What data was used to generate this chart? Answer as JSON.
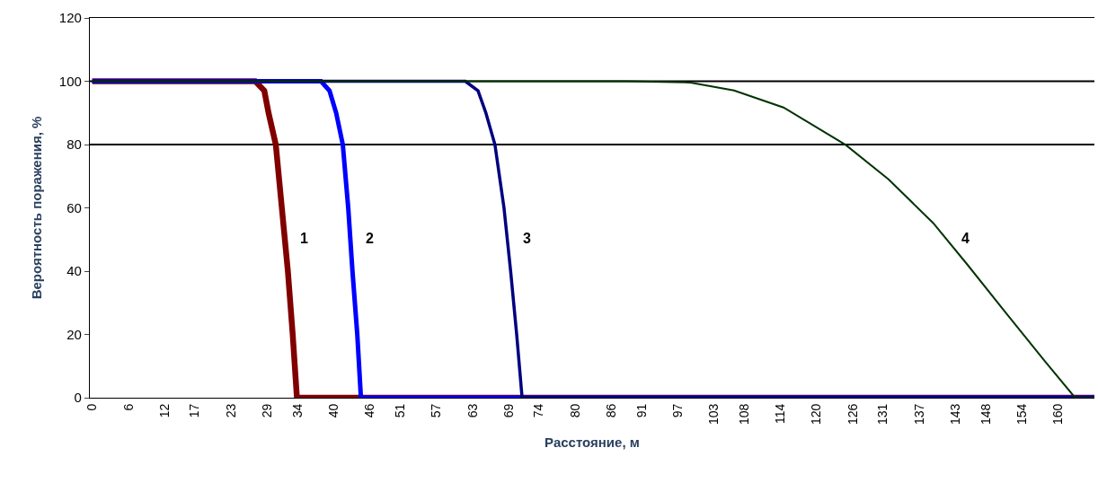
{
  "chart_data": {
    "type": "line",
    "xlabel": "Расстояние, м",
    "ylabel": "Вероятность поражения, %",
    "xlim": [
      -0.4,
      166
    ],
    "ylim": [
      0,
      120
    ],
    "xticks": [
      0,
      6,
      12,
      17,
      23,
      29,
      34,
      40,
      46,
      51,
      57,
      63,
      69,
      74,
      80,
      86,
      91,
      97,
      103,
      108,
      114,
      120,
      126,
      131,
      137,
      143,
      148,
      154,
      160
    ],
    "yticks": [
      0,
      20,
      40,
      60,
      80,
      100,
      120
    ],
    "grid": false,
    "marker": "none",
    "line_style": "solid",
    "ref_lines": [
      {
        "axis": "y",
        "value": 80,
        "color": "#000000"
      },
      {
        "axis": "y",
        "value": 100,
        "color": "#000000"
      }
    ],
    "series": [
      {
        "color": "#800000",
        "x": [
          0,
          27,
          28.5,
          29.2,
          30.4,
          31.4,
          32.4,
          33.2,
          33.9,
          166
        ],
        "values": [
          100,
          100,
          97,
          90,
          80,
          60,
          40,
          20,
          0,
          0
        ]
      },
      {
        "color": "#0000ff",
        "x": [
          0,
          37.9,
          39.3,
          40.4,
          41.5,
          42.4,
          43.1,
          43.9,
          44.5,
          166
        ],
        "values": [
          100,
          100,
          97,
          90,
          80,
          60,
          40,
          20,
          0,
          0
        ]
      },
      {
        "color": "#000080",
        "x": [
          0,
          61.8,
          63.9,
          65.2,
          66.7,
          68.2,
          69.3,
          70.3,
          71.2,
          166
        ],
        "values": [
          100,
          100,
          97,
          90,
          80,
          60,
          40,
          20,
          0,
          0
        ]
      },
      {
        "color": "#003300",
        "x": [
          0,
          88.7,
          99.1,
          106.3,
          114.5,
          124.8,
          131.9,
          139.3,
          144.9,
          151.5,
          157.8,
          162.8,
          166
        ],
        "values": [
          100,
          100,
          99.6,
          97.1,
          91.7,
          79.9,
          69,
          55.2,
          42.2,
          26.4,
          11.5,
          0,
          0
        ]
      }
    ],
    "annotations": [
      "1",
      "2",
      "3",
      "4"
    ]
  }
}
